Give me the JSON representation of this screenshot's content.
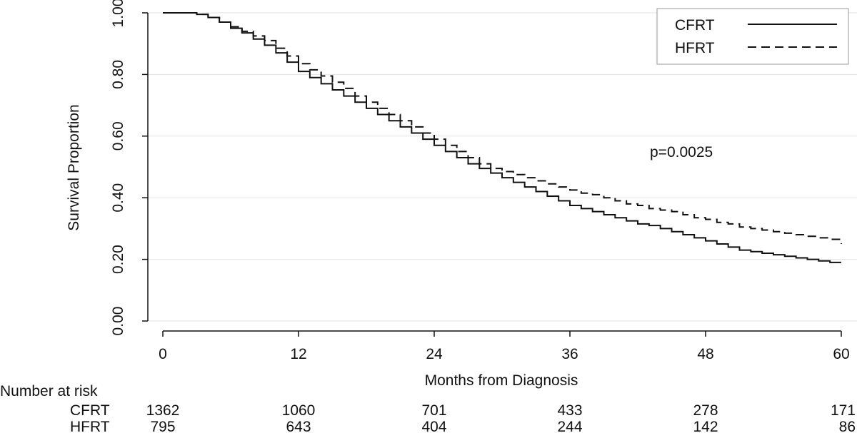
{
  "chart_data": {
    "type": "line",
    "title": "",
    "xlabel": "Months from Diagnosis",
    "ylabel": "Survival Proportion",
    "xlim": [
      0,
      60
    ],
    "ylim": [
      0,
      1
    ],
    "x_ticks": [
      "0",
      "12",
      "24",
      "36",
      "48",
      "60"
    ],
    "y_ticks": [
      "0.00",
      "0.20",
      "0.40",
      "0.60",
      "0.80",
      "1.00"
    ],
    "grid": true,
    "legend_position": "top-right",
    "annotation": "p=0.0025",
    "series": [
      {
        "name": "CFRT",
        "style": "solid",
        "x": [
          0,
          2,
          3,
          4,
          5,
          6,
          7,
          8,
          9,
          10,
          11,
          12,
          13,
          14,
          15,
          16,
          17,
          18,
          19,
          20,
          21,
          22,
          23,
          24,
          25,
          26,
          27,
          28,
          29,
          30,
          31,
          32,
          33,
          34,
          35,
          36,
          37,
          38,
          39,
          40,
          41,
          42,
          43,
          44,
          45,
          46,
          47,
          48,
          49,
          50,
          51,
          52,
          53,
          54,
          55,
          56,
          57,
          58,
          59,
          60
        ],
        "y": [
          1.0,
          1.0,
          0.995,
          0.985,
          0.97,
          0.95,
          0.935,
          0.915,
          0.895,
          0.87,
          0.84,
          0.81,
          0.79,
          0.77,
          0.75,
          0.73,
          0.71,
          0.69,
          0.67,
          0.65,
          0.63,
          0.61,
          0.59,
          0.57,
          0.55,
          0.53,
          0.51,
          0.495,
          0.48,
          0.465,
          0.45,
          0.435,
          0.42,
          0.405,
          0.39,
          0.375,
          0.365,
          0.355,
          0.345,
          0.335,
          0.325,
          0.315,
          0.31,
          0.3,
          0.29,
          0.28,
          0.27,
          0.26,
          0.25,
          0.24,
          0.23,
          0.225,
          0.22,
          0.215,
          0.21,
          0.205,
          0.2,
          0.195,
          0.19,
          0.19
        ]
      },
      {
        "name": "HFRT",
        "style": "dashed",
        "x": [
          0,
          2,
          3,
          4,
          5,
          6,
          7,
          8,
          9,
          10,
          11,
          12,
          13,
          14,
          15,
          16,
          17,
          18,
          19,
          20,
          21,
          22,
          23,
          24,
          25,
          26,
          27,
          28,
          29,
          30,
          31,
          32,
          33,
          34,
          35,
          36,
          37,
          38,
          39,
          40,
          41,
          42,
          43,
          44,
          45,
          46,
          47,
          48,
          49,
          50,
          51,
          52,
          53,
          54,
          55,
          56,
          57,
          58,
          59,
          60
        ],
        "y": [
          1.0,
          1.0,
          0.995,
          0.985,
          0.97,
          0.955,
          0.94,
          0.925,
          0.91,
          0.885,
          0.86,
          0.835,
          0.815,
          0.795,
          0.775,
          0.755,
          0.73,
          0.71,
          0.69,
          0.67,
          0.65,
          0.63,
          0.61,
          0.59,
          0.57,
          0.55,
          0.53,
          0.51,
          0.495,
          0.485,
          0.475,
          0.465,
          0.455,
          0.445,
          0.435,
          0.425,
          0.415,
          0.41,
          0.4,
          0.39,
          0.38,
          0.375,
          0.365,
          0.36,
          0.355,
          0.345,
          0.335,
          0.33,
          0.32,
          0.315,
          0.305,
          0.3,
          0.295,
          0.29,
          0.285,
          0.28,
          0.275,
          0.27,
          0.265,
          0.25
        ]
      }
    ],
    "risk_table": {
      "title": "Number at risk",
      "rows": [
        {
          "name": "CFRT",
          "values": [
            "1362",
            "1060",
            "701",
            "433",
            "278",
            "171"
          ]
        },
        {
          "name": "HFRT",
          "values": [
            "795",
            "643",
            "404",
            "244",
            "142",
            "86"
          ]
        }
      ]
    }
  }
}
